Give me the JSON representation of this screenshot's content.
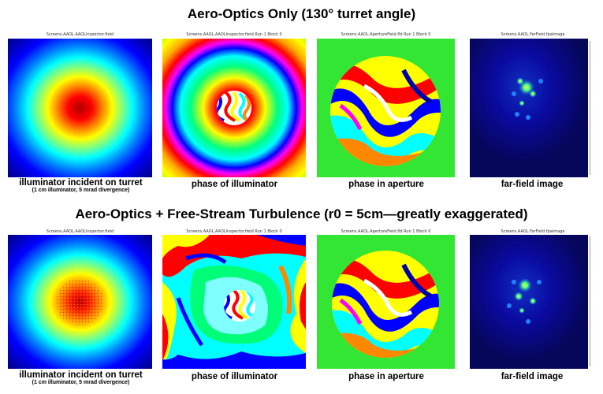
{
  "row1": {
    "title": "Aero-Optics Only (130° turret angle)",
    "panels": [
      {
        "header": "Screens.AAOL.AAOLInspector.field",
        "caption": "illuminator incident on turret",
        "subcaption": "(1 cm illuminator, 5 mrad divergence)"
      },
      {
        "header": "Screens.AAOL.AAOLInspector.field Run 1 Block 0",
        "caption": "phase of illuminator"
      },
      {
        "header": "Screens.AAOL.ApertureField.fld Run 1 Block 0",
        "caption": "phase in aperture"
      },
      {
        "header": "Screens.AAOL.FarField.fpaImage",
        "caption": "far-field image"
      }
    ]
  },
  "row2": {
    "title": "Aero-Optics + Free-Stream Turbulence (r0 = 5cm—greatly exaggerated)",
    "panels": [
      {
        "header": "Screens.AAOL.AAOLInspector.field",
        "caption": "illuminator incident on turret",
        "subcaption": "(1 cm illuminator, 5 mrad divergence)"
      },
      {
        "header": "Screens.AAOL.AAOLInspector.field Run 1 Block 0",
        "caption": "phase of illuminator"
      },
      {
        "header": "Screens.AAOL.ApertureField.fld Run 1 Block 0",
        "caption": "phase in aperture"
      },
      {
        "header": "Screens.AAOL.FarField.fpaImage",
        "caption": "far-field image"
      }
    ]
  },
  "colors": {
    "page_background": "#ffffff",
    "phase_background": "#33e633",
    "farfield_background": "#08087a",
    "colormap": "jet"
  }
}
